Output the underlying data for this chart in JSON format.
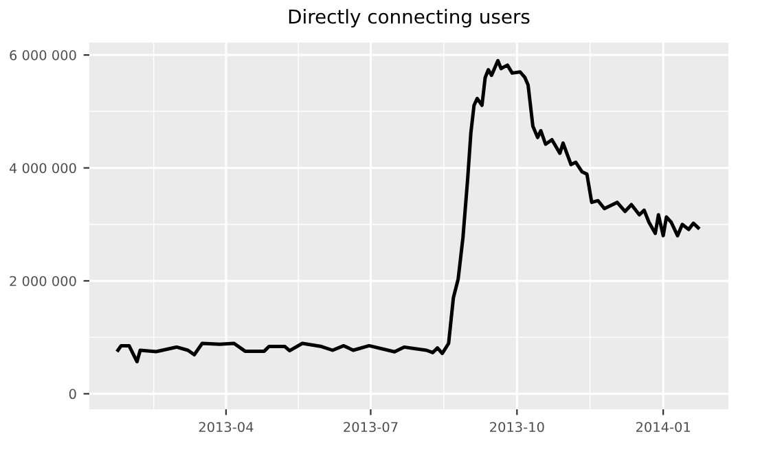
{
  "chart_data": {
    "type": "line",
    "title": "Directly connecting users",
    "x": [
      "2013-01-23",
      "2013-01-25",
      "2013-01-30",
      "2013-02-04",
      "2013-02-06",
      "2013-02-16",
      "2013-03-01",
      "2013-03-08",
      "2013-03-12",
      "2013-03-17",
      "2013-03-28",
      "2013-04-06",
      "2013-04-13",
      "2013-04-25",
      "2013-04-28",
      "2013-05-08",
      "2013-05-11",
      "2013-05-19",
      "2013-05-31",
      "2013-06-07",
      "2013-06-14",
      "2013-06-20",
      "2013-06-30",
      "2013-07-16",
      "2013-07-22",
      "2013-08-05",
      "2013-08-09",
      "2013-08-12",
      "2013-08-15",
      "2013-08-19",
      "2013-08-22",
      "2013-08-25",
      "2013-08-28",
      "2013-08-31",
      "2013-09-02",
      "2013-09-04",
      "2013-09-06",
      "2013-09-09",
      "2013-09-11",
      "2013-09-13",
      "2013-09-15",
      "2013-09-19",
      "2013-09-21",
      "2013-09-25",
      "2013-09-28",
      "2013-10-03",
      "2013-10-06",
      "2013-10-08",
      "2013-10-11",
      "2013-10-14",
      "2013-10-16",
      "2013-10-19",
      "2013-10-23",
      "2013-10-28",
      "2013-10-30",
      "2013-11-04",
      "2013-11-07",
      "2013-11-11",
      "2013-11-14",
      "2013-11-17",
      "2013-11-21",
      "2013-11-25",
      "2013-12-03",
      "2013-12-08",
      "2013-12-12",
      "2013-12-17",
      "2013-12-20",
      "2013-12-23",
      "2013-12-27",
      "2013-12-29",
      "2014-01-01",
      "2014-01-03",
      "2014-01-06",
      "2014-01-10",
      "2014-01-13",
      "2014-01-17",
      "2014-01-20",
      "2014-01-23"
    ],
    "series": [
      {
        "color": "#000000",
        "values": [
          771000,
          851000,
          851000,
          569000,
          771000,
          747000,
          827000,
          771000,
          691000,
          893000,
          876000,
          893000,
          754000,
          754000,
          837000,
          837000,
          764000,
          893000,
          837000,
          771000,
          851000,
          771000,
          851000,
          744000,
          827000,
          771000,
          730000,
          812000,
          715000,
          893000,
          1700000,
          2030000,
          2760000,
          3810000,
          4620000,
          5110000,
          5230000,
          5110000,
          5600000,
          5740000,
          5640000,
          5900000,
          5760000,
          5820000,
          5680000,
          5700000,
          5600000,
          5470000,
          4740000,
          4540000,
          4660000,
          4420000,
          4500000,
          4260000,
          4440000,
          4060000,
          4100000,
          3930000,
          3890000,
          3390000,
          3420000,
          3280000,
          3390000,
          3230000,
          3350000,
          3170000,
          3250000,
          3040000,
          2840000,
          3170000,
          2800000,
          3130000,
          3040000,
          2800000,
          3000000,
          2910000,
          3020000,
          2940000
        ]
      }
    ],
    "xlim": [
      "2013-01-05",
      "2014-02-11"
    ],
    "xticks": [
      {
        "value": "2013-04-01",
        "label": "2013-04"
      },
      {
        "value": "2013-07-01",
        "label": "2013-07"
      },
      {
        "value": "2013-10-01",
        "label": "2013-10"
      },
      {
        "value": "2014-01-01",
        "label": "2014-01"
      }
    ],
    "ylim": [
      -275000,
      6220000
    ],
    "yticks": [
      {
        "value": 0,
        "label": "0"
      },
      {
        "value": 2000000,
        "label": "2 000 000"
      },
      {
        "value": 4000000,
        "label": "4 000 000"
      },
      {
        "value": 6000000,
        "label": "6 000 000"
      }
    ],
    "grid": true,
    "line_style": "solid",
    "marker": "none"
  }
}
